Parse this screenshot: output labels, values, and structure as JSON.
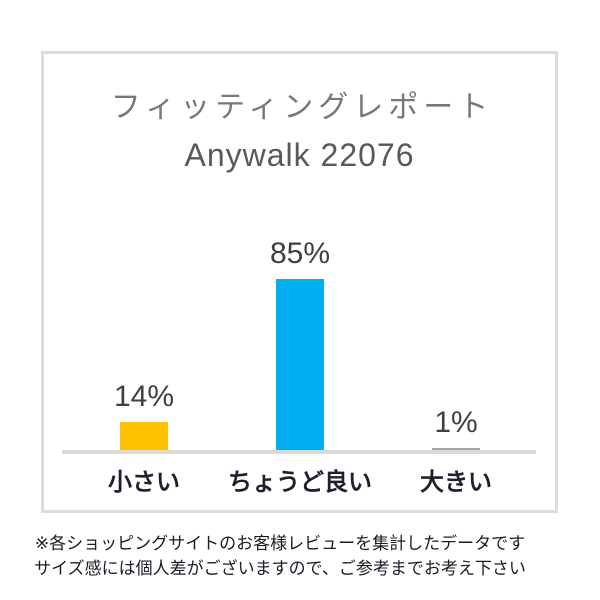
{
  "report": {
    "title": "フィッティングレポート",
    "subtitle": "Anywalk 22076"
  },
  "chart_data": {
    "type": "bar",
    "title": "フィッティングレポート",
    "subtitle": "Anywalk 22076",
    "categories": [
      "小さい",
      "ちょうど良い",
      "大きい"
    ],
    "values": [
      14,
      85,
      1
    ],
    "value_labels": [
      "14%",
      "85%",
      "1%"
    ],
    "bar_colors": [
      "#FFC000",
      "#00B0F0",
      "#A5A5A5"
    ],
    "ylabel": "",
    "xlabel": "",
    "ylim": [
      0,
      100
    ],
    "grid": false,
    "legend": false,
    "data_labels_position": "above-bar"
  },
  "footer": {
    "line1": "※各ショッピングサイトのお客様レビューを集計したデータです",
    "line2": "サイズ感には個人差がございますので、ご参考までお考え下さい"
  },
  "colors": {
    "background": "#ffffff",
    "card_border": "#dcdcdc",
    "axis_line": "#d9d9d9",
    "title_text": "#787878",
    "subtitle_text": "#595959",
    "value_label_text": "#404040",
    "category_label_text": "#20202f",
    "footer_text": "#1b1b26"
  }
}
